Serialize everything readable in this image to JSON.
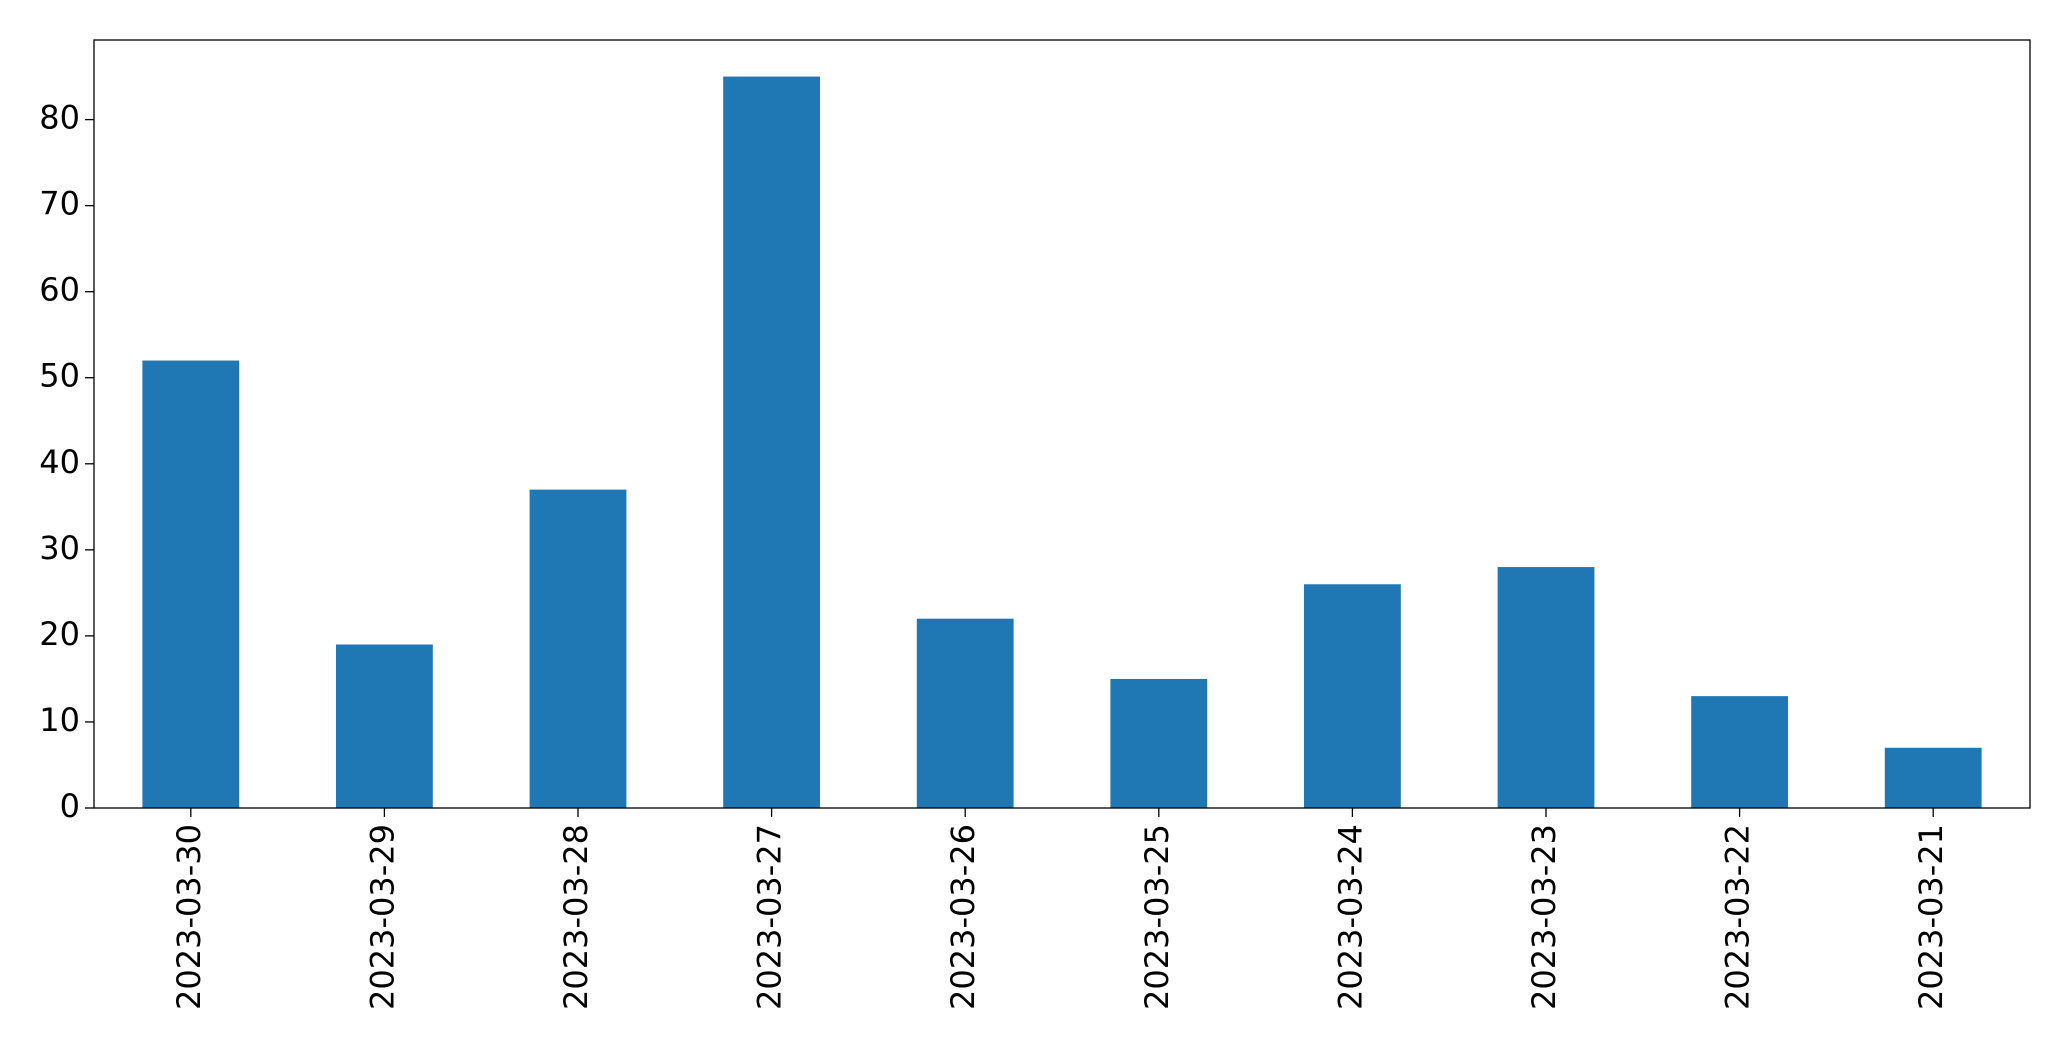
{
  "chart_data": {
    "type": "bar",
    "categories": [
      "2023-03-30",
      "2023-03-29",
      "2023-03-28",
      "2023-03-27",
      "2023-03-26",
      "2023-03-25",
      "2023-03-24",
      "2023-03-23",
      "2023-03-22",
      "2023-03-21"
    ],
    "values": [
      52,
      19,
      37,
      85,
      22,
      15,
      26,
      28,
      13,
      7
    ],
    "color": "#1f77b4",
    "ylim": [
      0,
      89.25
    ],
    "yticks": [
      0,
      10,
      20,
      30,
      40,
      50,
      60,
      70,
      80
    ],
    "grid": false
  }
}
